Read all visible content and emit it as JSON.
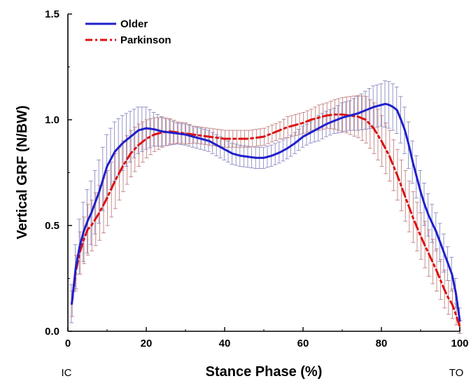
{
  "chart_data": {
    "type": "line",
    "title": "",
    "xlabel": "Stance Phase (%)",
    "ylabel": "Vertical GRF (N/BW)",
    "xlim": [
      0,
      100
    ],
    "ylim": [
      0,
      1.5
    ],
    "x_ticks": [
      "0",
      "20",
      "40",
      "60",
      "80",
      "100"
    ],
    "y_ticks": [
      "0.0",
      "0.5",
      "1.0",
      "1.5"
    ],
    "x_end_labels": {
      "start": "IC",
      "end": "TO"
    },
    "legend_position": "top-left",
    "grid": false,
    "series": [
      {
        "name": "Older",
        "color": "#1f1fcc",
        "line_style": "solid",
        "errorbar_color": "#8a8ac0",
        "x": [
          1,
          2,
          3,
          4,
          5,
          6,
          8,
          10,
          12,
          14,
          16,
          18,
          20,
          22,
          24,
          26,
          28,
          30,
          32,
          34,
          36,
          38,
          40,
          42,
          44,
          46,
          48,
          50,
          52,
          54,
          56,
          58,
          60,
          62,
          64,
          66,
          68,
          70,
          72,
          74,
          76,
          78,
          80,
          81,
          82,
          83,
          84,
          85,
          86,
          87,
          88,
          89,
          90,
          91,
          92,
          93,
          94,
          95,
          96,
          97,
          98,
          99,
          100
        ],
        "y": [
          0.13,
          0.3,
          0.4,
          0.47,
          0.52,
          0.56,
          0.66,
          0.78,
          0.85,
          0.89,
          0.92,
          0.95,
          0.96,
          0.955,
          0.945,
          0.94,
          0.935,
          0.93,
          0.92,
          0.91,
          0.9,
          0.88,
          0.86,
          0.84,
          0.83,
          0.825,
          0.82,
          0.82,
          0.83,
          0.845,
          0.865,
          0.89,
          0.92,
          0.94,
          0.96,
          0.98,
          0.995,
          1.01,
          1.02,
          1.03,
          1.045,
          1.06,
          1.07,
          1.075,
          1.07,
          1.06,
          1.045,
          1.0,
          0.95,
          0.88,
          0.8,
          0.73,
          0.66,
          0.6,
          0.55,
          0.51,
          0.47,
          0.42,
          0.37,
          0.32,
          0.27,
          0.18,
          0.05
        ],
        "error": [
          0.09,
          0.11,
          0.13,
          0.14,
          0.15,
          0.15,
          0.15,
          0.15,
          0.14,
          0.13,
          0.12,
          0.11,
          0.1,
          0.08,
          0.07,
          0.06,
          0.05,
          0.05,
          0.05,
          0.05,
          0.05,
          0.05,
          0.05,
          0.05,
          0.05,
          0.05,
          0.05,
          0.05,
          0.05,
          0.05,
          0.05,
          0.05,
          0.05,
          0.05,
          0.06,
          0.06,
          0.06,
          0.07,
          0.07,
          0.08,
          0.09,
          0.1,
          0.1,
          0.11,
          0.11,
          0.11,
          0.11,
          0.11,
          0.11,
          0.11,
          0.1,
          0.1,
          0.1,
          0.1,
          0.1,
          0.09,
          0.09,
          0.09,
          0.09,
          0.08,
          0.08,
          0.07,
          0.06
        ]
      },
      {
        "name": "Parkinson",
        "color": "#dd1111",
        "line_style": "dash-dot",
        "errorbar_color": "#c08080",
        "x": [
          1,
          2,
          3,
          4,
          5,
          6,
          8,
          10,
          12,
          14,
          16,
          18,
          20,
          22,
          24,
          26,
          28,
          30,
          32,
          34,
          36,
          38,
          40,
          42,
          44,
          46,
          48,
          50,
          52,
          54,
          56,
          58,
          60,
          62,
          64,
          66,
          68,
          70,
          72,
          74,
          76,
          78,
          80,
          82,
          84,
          86,
          88,
          90,
          92,
          94,
          96,
          97,
          98,
          99,
          100
        ],
        "y": [
          0.13,
          0.28,
          0.37,
          0.43,
          0.48,
          0.5,
          0.56,
          0.63,
          0.71,
          0.78,
          0.84,
          0.88,
          0.91,
          0.93,
          0.94,
          0.945,
          0.94,
          0.935,
          0.93,
          0.925,
          0.92,
          0.915,
          0.91,
          0.91,
          0.91,
          0.91,
          0.915,
          0.92,
          0.935,
          0.95,
          0.965,
          0.975,
          0.985,
          1.0,
          1.01,
          1.02,
          1.025,
          1.025,
          1.02,
          1.015,
          1.0,
          0.96,
          0.9,
          0.83,
          0.74,
          0.64,
          0.54,
          0.45,
          0.37,
          0.29,
          0.2,
          0.16,
          0.13,
          0.08,
          0.02
        ],
        "error": [
          0.06,
          0.08,
          0.1,
          0.11,
          0.12,
          0.12,
          0.13,
          0.13,
          0.13,
          0.12,
          0.11,
          0.1,
          0.09,
          0.08,
          0.07,
          0.06,
          0.05,
          0.05,
          0.04,
          0.04,
          0.04,
          0.04,
          0.04,
          0.04,
          0.04,
          0.04,
          0.04,
          0.04,
          0.04,
          0.04,
          0.05,
          0.05,
          0.05,
          0.05,
          0.06,
          0.06,
          0.07,
          0.08,
          0.09,
          0.1,
          0.11,
          0.12,
          0.12,
          0.12,
          0.12,
          0.12,
          0.12,
          0.11,
          0.11,
          0.1,
          0.09,
          0.08,
          0.07,
          0.05,
          0.03
        ]
      }
    ]
  }
}
